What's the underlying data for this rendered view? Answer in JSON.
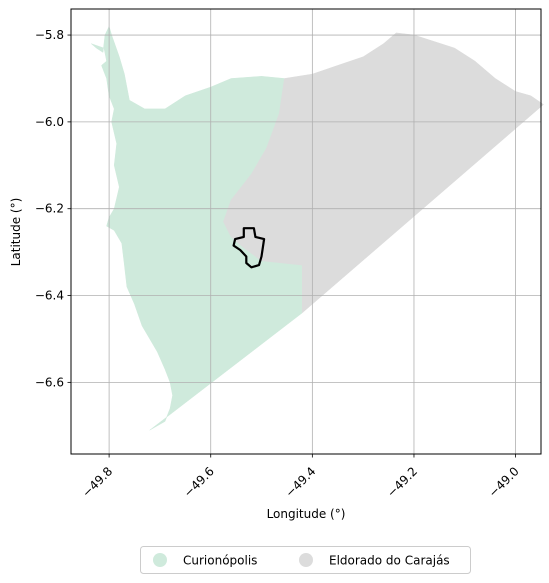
{
  "map": {
    "xlabel": "Longitude (°)",
    "ylabel": "Latitude (°)",
    "xlim": [
      -49.875,
      -48.95
    ],
    "ylim": [
      -6.765,
      -5.74
    ],
    "grid": true,
    "x_ticks": [
      {
        "value": -49.8,
        "label": "−49.8"
      },
      {
        "value": -49.6,
        "label": "−49.6"
      },
      {
        "value": -49.4,
        "label": "−49.4"
      },
      {
        "value": -49.2,
        "label": "−49.2"
      },
      {
        "value": -49.0,
        "label": "−49.0"
      }
    ],
    "y_ticks": [
      {
        "value": -5.8,
        "label": "−5.8"
      },
      {
        "value": -6.0,
        "label": "−6.0"
      },
      {
        "value": -6.2,
        "label": "−6.2"
      },
      {
        "value": -6.4,
        "label": "−6.4"
      },
      {
        "value": -6.6,
        "label": "−6.6"
      }
    ],
    "regions": [
      {
        "name": "Curionópolis",
        "color": "#cfeadc",
        "polygon": [
          [
            -49.835,
            -5.82
          ],
          [
            -49.81,
            -5.83
          ],
          [
            -49.805,
            -5.86
          ],
          [
            -49.815,
            -5.87
          ],
          [
            -49.805,
            -5.9
          ],
          [
            -49.8,
            -5.94
          ],
          [
            -49.79,
            -5.97
          ],
          [
            -49.795,
            -6.0
          ],
          [
            -49.785,
            -6.05
          ],
          [
            -49.79,
            -6.1
          ],
          [
            -49.78,
            -6.15
          ],
          [
            -49.79,
            -6.2
          ],
          [
            -49.8,
            -6.22
          ],
          [
            -49.805,
            -6.24
          ],
          [
            -49.79,
            -6.25
          ],
          [
            -49.775,
            -6.28
          ],
          [
            -49.77,
            -6.33
          ],
          [
            -49.765,
            -6.38
          ],
          [
            -49.75,
            -6.42
          ],
          [
            -49.735,
            -6.47
          ],
          [
            -49.72,
            -6.5
          ],
          [
            -49.705,
            -6.53
          ],
          [
            -49.69,
            -6.57
          ],
          [
            -49.68,
            -6.6
          ],
          [
            -49.675,
            -6.63
          ],
          [
            -49.68,
            -6.66
          ],
          [
            -49.69,
            -6.69
          ],
          [
            -49.72,
            -6.71
          ],
          [
            -49.42,
            -6.44
          ],
          [
            -49.42,
            -6.33
          ],
          [
            -49.5,
            -6.32
          ],
          [
            -49.535,
            -6.29
          ],
          [
            -49.56,
            -6.265
          ],
          [
            -49.575,
            -6.23
          ],
          [
            -49.56,
            -6.18
          ],
          [
            -49.52,
            -6.12
          ],
          [
            -49.49,
            -6.06
          ],
          [
            -49.465,
            -5.98
          ],
          [
            -49.455,
            -5.9
          ],
          [
            -49.5,
            -5.895
          ],
          [
            -49.56,
            -5.9
          ],
          [
            -49.6,
            -5.92
          ],
          [
            -49.65,
            -5.94
          ],
          [
            -49.69,
            -5.97
          ],
          [
            -49.73,
            -5.97
          ],
          [
            -49.76,
            -5.95
          ],
          [
            -49.77,
            -5.89
          ],
          [
            -49.78,
            -5.85
          ],
          [
            -49.795,
            -5.8
          ],
          [
            -49.8,
            -5.78
          ],
          [
            -49.808,
            -5.8
          ],
          [
            -49.812,
            -5.84
          ],
          [
            -49.825,
            -5.83
          ]
        ]
      },
      {
        "name": "Eldorado do Carajás",
        "color": "#dcdcdc",
        "polygon": [
          [
            -49.455,
            -5.9
          ],
          [
            -49.4,
            -5.89
          ],
          [
            -49.35,
            -5.87
          ],
          [
            -49.3,
            -5.85
          ],
          [
            -49.26,
            -5.82
          ],
          [
            -49.235,
            -5.795
          ],
          [
            -49.2,
            -5.8
          ],
          [
            -49.12,
            -5.83
          ],
          [
            -49.08,
            -5.86
          ],
          [
            -49.04,
            -5.9
          ],
          [
            -49.0,
            -5.93
          ],
          [
            -48.97,
            -5.94
          ],
          [
            -48.945,
            -5.96
          ],
          [
            -49.42,
            -6.44
          ],
          [
            -49.42,
            -6.33
          ],
          [
            -49.5,
            -6.32
          ],
          [
            -49.535,
            -6.29
          ],
          [
            -49.56,
            -6.265
          ],
          [
            -49.575,
            -6.23
          ],
          [
            -49.56,
            -6.18
          ],
          [
            -49.52,
            -6.12
          ],
          [
            -49.49,
            -6.06
          ],
          [
            -49.465,
            -5.98
          ]
        ]
      }
    ],
    "highlight_outline": {
      "color": "#000000",
      "polygon": [
        [
          -49.535,
          -6.245
        ],
        [
          -49.515,
          -6.245
        ],
        [
          -49.512,
          -6.265
        ],
        [
          -49.495,
          -6.27
        ],
        [
          -49.5,
          -6.31
        ],
        [
          -49.505,
          -6.33
        ],
        [
          -49.52,
          -6.335
        ],
        [
          -49.53,
          -6.325
        ],
        [
          -49.53,
          -6.31
        ],
        [
          -49.542,
          -6.295
        ],
        [
          -49.555,
          -6.285
        ],
        [
          -49.552,
          -6.27
        ],
        [
          -49.535,
          -6.265
        ]
      ]
    },
    "legend": {
      "placement": "bottom-center",
      "entries": [
        {
          "label": "Curionópolis",
          "color": "#cfeadc"
        },
        {
          "label": "Eldorado do Carajás",
          "color": "#dcdcdc"
        }
      ]
    }
  }
}
